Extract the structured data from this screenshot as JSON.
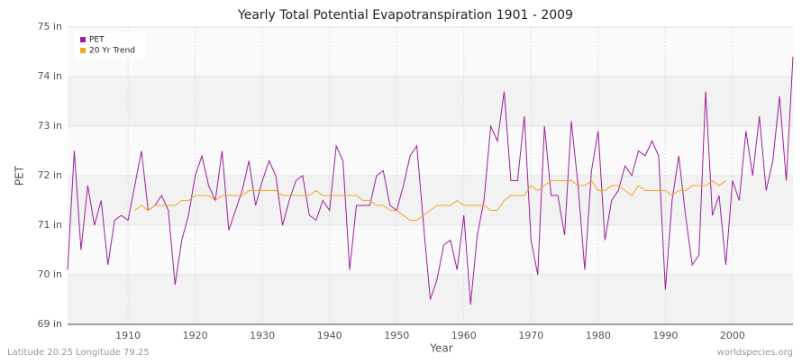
{
  "chart_data": {
    "type": "line",
    "title": "Yearly Total Potential Evapotranspiration 1901 - 2009",
    "xlabel": "Year",
    "ylabel": "PET",
    "footer_left": "Latitude 20.25 Longitude 79.25",
    "footer_right": "worldspecies.org",
    "x": [
      1901,
      1902,
      1903,
      1904,
      1905,
      1906,
      1907,
      1908,
      1909,
      1910,
      1911,
      1912,
      1913,
      1914,
      1915,
      1916,
      1917,
      1918,
      1919,
      1920,
      1921,
      1922,
      1923,
      1924,
      1925,
      1926,
      1927,
      1928,
      1929,
      1930,
      1931,
      1932,
      1933,
      1934,
      1935,
      1936,
      1937,
      1938,
      1939,
      1940,
      1941,
      1942,
      1943,
      1944,
      1945,
      1946,
      1947,
      1948,
      1949,
      1950,
      1951,
      1952,
      1953,
      1954,
      1955,
      1956,
      1957,
      1958,
      1959,
      1960,
      1961,
      1962,
      1963,
      1964,
      1965,
      1966,
      1967,
      1968,
      1969,
      1970,
      1971,
      1972,
      1973,
      1974,
      1975,
      1976,
      1977,
      1978,
      1979,
      1980,
      1981,
      1982,
      1983,
      1984,
      1985,
      1986,
      1987,
      1988,
      1989,
      1990,
      1991,
      1992,
      1993,
      1994,
      1995,
      1996,
      1997,
      1998,
      1999,
      2000,
      2001,
      2002,
      2003,
      2004,
      2005,
      2006,
      2007,
      2008,
      2009
    ],
    "series": [
      {
        "name": "PET",
        "color": "#9b1f9b",
        "values": [
          70.1,
          72.5,
          70.5,
          71.8,
          71.0,
          71.5,
          70.2,
          71.1,
          71.2,
          71.1,
          71.8,
          72.5,
          71.3,
          71.4,
          71.6,
          71.3,
          69.8,
          70.7,
          71.2,
          72.0,
          72.4,
          71.8,
          71.5,
          72.5,
          70.9,
          71.3,
          71.7,
          72.3,
          71.4,
          71.9,
          72.3,
          72.0,
          71.0,
          71.5,
          71.9,
          72.0,
          71.2,
          71.1,
          71.5,
          71.3,
          72.6,
          72.3,
          70.1,
          71.4,
          71.4,
          71.4,
          72.0,
          72.1,
          71.4,
          71.3,
          71.8,
          72.4,
          72.6,
          71.0,
          69.5,
          69.9,
          70.6,
          70.7,
          70.1,
          71.2,
          69.4,
          70.8,
          71.5,
          73.0,
          72.7,
          73.7,
          71.9,
          71.9,
          73.2,
          70.7,
          70.0,
          73.0,
          71.6,
          71.6,
          70.8,
          73.1,
          71.8,
          70.1,
          72.1,
          72.9,
          70.7,
          71.5,
          71.7,
          72.2,
          72.0,
          72.5,
          72.4,
          72.7,
          72.4,
          69.7,
          71.5,
          72.4,
          71.2,
          70.2,
          70.4,
          73.7,
          71.2,
          71.6,
          70.2,
          71.9,
          71.5,
          72.9,
          72.0,
          73.2,
          71.7,
          72.3,
          73.6,
          71.9,
          74.4
        ]
      },
      {
        "name": "20 Yr Trend",
        "color": "#f5a623",
        "values": [
          null,
          null,
          null,
          null,
          null,
          null,
          null,
          null,
          null,
          null,
          71.3,
          71.4,
          71.3,
          71.4,
          71.4,
          71.4,
          71.4,
          71.5,
          71.5,
          71.6,
          71.6,
          71.6,
          71.5,
          71.6,
          71.6,
          71.6,
          71.6,
          71.7,
          71.7,
          71.7,
          71.7,
          71.7,
          71.6,
          71.6,
          71.6,
          71.6,
          71.6,
          71.7,
          71.6,
          71.6,
          71.6,
          71.6,
          71.6,
          71.6,
          71.5,
          71.5,
          71.4,
          71.4,
          71.3,
          71.3,
          71.2,
          71.1,
          71.1,
          71.2,
          71.3,
          71.4,
          71.4,
          71.4,
          71.5,
          71.4,
          71.4,
          71.4,
          71.4,
          71.3,
          71.3,
          71.5,
          71.6,
          71.6,
          71.6,
          71.8,
          71.7,
          71.8,
          71.9,
          71.9,
          71.9,
          71.9,
          71.8,
          71.8,
          71.9,
          71.7,
          71.7,
          71.8,
          71.8,
          71.7,
          71.6,
          71.8,
          71.7,
          71.7,
          71.7,
          71.7,
          71.6,
          71.7,
          71.7,
          71.8,
          71.8,
          71.8,
          71.9,
          71.8,
          71.9,
          null,
          null,
          null,
          null,
          null,
          null,
          null,
          null,
          null,
          null
        ]
      }
    ],
    "xlim": [
      1901,
      2009
    ],
    "ylim": [
      69,
      75
    ],
    "xticks": [
      1910,
      1920,
      1930,
      1940,
      1950,
      1960,
      1970,
      1980,
      1990,
      2000
    ],
    "yticks": [
      {
        "value": 69,
        "label": "69 in"
      },
      {
        "value": 70,
        "label": "70 in"
      },
      {
        "value": 71,
        "label": "71 in"
      },
      {
        "value": 72,
        "label": "72 in"
      },
      {
        "value": 73,
        "label": "73 in"
      },
      {
        "value": 74,
        "label": "74 in"
      },
      {
        "value": 75,
        "label": "75 in"
      }
    ],
    "grid": true,
    "legend": "upper left"
  }
}
